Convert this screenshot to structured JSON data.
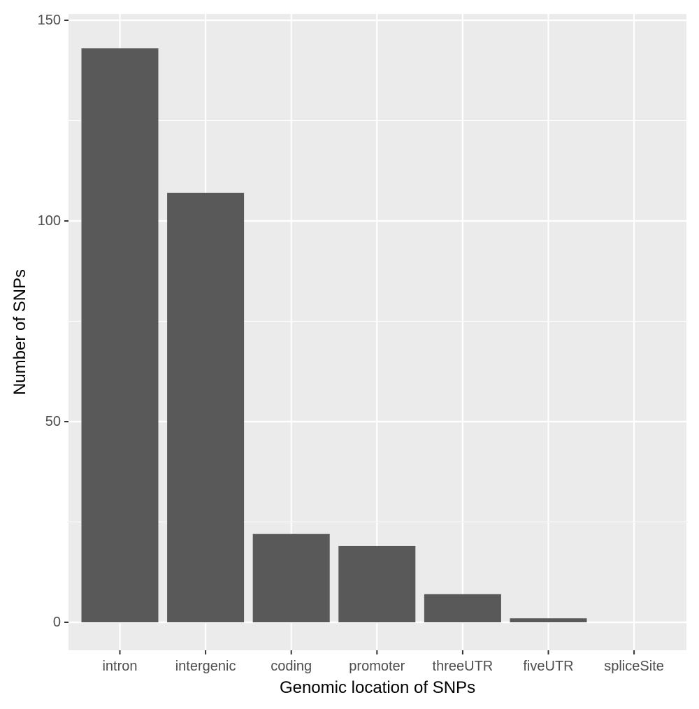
{
  "chart_data": {
    "type": "bar",
    "title": "",
    "xlabel": "Genomic location of SNPs",
    "ylabel": "Number of SNPs",
    "categories": [
      "intron",
      "intergenic",
      "coding",
      "promoter",
      "threeUTR",
      "fiveUTR",
      "spliceSite"
    ],
    "values": [
      143,
      107,
      22,
      19,
      7,
      1,
      0
    ],
    "ylim": [
      -6.5,
      150
    ],
    "yticks": [
      0,
      50,
      100,
      150
    ],
    "grid": true,
    "legend": "none"
  },
  "colors": {
    "bar": "#595959",
    "panel_background": "#ebebeb",
    "grid_major": "#ffffff",
    "tick_label": "#4d4d4d",
    "axis_title": "#000000"
  }
}
